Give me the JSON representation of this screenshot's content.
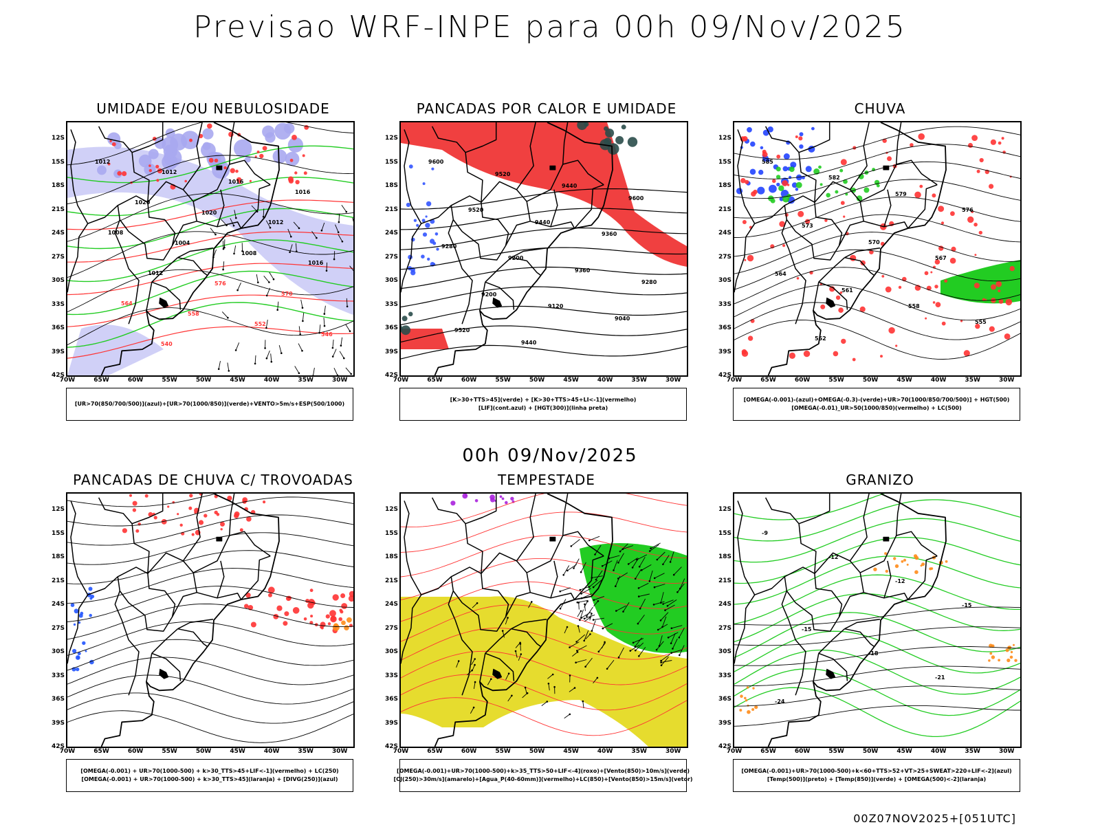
{
  "main_title": "Previsao WRF-INPE  para 00h 09/Nov/2025",
  "mid_title": "00h 09/Nov/2025",
  "footer": "00Z07NOV2025+[051UTC]",
  "lat_labels": [
    "12S",
    "15S",
    "18S",
    "21S",
    "24S",
    "27S",
    "30S",
    "33S",
    "36S",
    "39S",
    "42S"
  ],
  "lon_labels": [
    "70W",
    "65W",
    "60W",
    "55W",
    "50W",
    "45W",
    "40W",
    "35W",
    "30W"
  ],
  "lat_values": [
    -12,
    -15,
    -18,
    -21,
    -24,
    -27,
    -30,
    -33,
    -36,
    -39,
    -42
  ],
  "lon_values": [
    -70,
    -65,
    -60,
    -55,
    -50,
    -45,
    -40,
    -35,
    -30
  ],
  "extent": {
    "lon_min": -70,
    "lon_max": -28,
    "lat_min": -42,
    "lat_max": -10
  },
  "panels": [
    {
      "title": "UMIDADE E/OU NEBULOSIDADE",
      "legend": [
        "[UR>70(850/700/500)](azul)+[UR>70(1000/850)](verde)+VENTO>5m/s+ESP(500/1000)"
      ],
      "contour_labels": [
        "1012",
        "1012",
        "1016",
        "1016",
        "1020",
        "1020",
        "1012",
        "1008",
        "1004",
        "1008",
        "1016",
        "1012",
        "576",
        "570",
        "564",
        "558",
        "552",
        "546",
        "540"
      ],
      "colors": {
        "fill": "#a9a9f0",
        "green": "#22cc22",
        "red": "#ff3333"
      }
    },
    {
      "title": "PANCADAS POR CALOR E UMIDADE",
      "legend": [
        "[K>30+TTS>45](verde) + [K>30+TTS>45+LI<-1](vermelho)",
        "[LIF](cont.azul) + [HGT(300)](linha preta)"
      ],
      "contour_labels": [
        "9600",
        "9520",
        "9440",
        "9600",
        "9520",
        "9440",
        "9360",
        "9280",
        "9200",
        "9360",
        "9280",
        "9200",
        "9120",
        "9040",
        "9520",
        "9440"
      ],
      "colors": {
        "fill": "#f04040",
        "green": "#2a4d4a",
        "blue": "#3355ff"
      }
    },
    {
      "title": "CHUVA",
      "legend": [
        "[OMEGA(-0.001)-(azul)+OMEGA(-0.3)-(verde)+UR>70(1000/850/700/500)] + HGT(500)",
        "[OMEGA(-0.01)_UR>50(1000/850)(vermelho) + LC(500)"
      ],
      "contour_labels": [
        "585",
        "582",
        "579",
        "576",
        "573",
        "570",
        "567",
        "564",
        "561",
        "558",
        "555",
        "552"
      ],
      "colors": {
        "red": "#ff3333",
        "green": "#22cc22",
        "blue": "#2244ff"
      }
    },
    {
      "title": "PANCADAS DE CHUVA C/ TROVOADAS",
      "legend": [
        "[OMEGA(-0.001) + UR>70(1000-500) + k>30_TTS>45+LIF<-1](vermelho) + LC(250)",
        "[OMEGA(-0.001) + UR>70(1000-500) + k>30_TTS>45](laranja) + [DIVG(250)](azul)"
      ],
      "contour_labels": [],
      "colors": {
        "red": "#ff3333",
        "orange": "#ff8c1a",
        "blue": "#2255ff"
      }
    },
    {
      "title": "TEMPESTADE",
      "legend": [
        "[OMEGA(-0.001)+UR>70(1000-500)+k>35_TTS>50+LIF<-4](roxo)+[Vento(850)>10m/s](verde)",
        "[CJ(250)>30m/s](amarelo)+[Agua_P(40-60mm)](vermelho)+LC(850)+[Vento(850)>15m/s](vetor)"
      ],
      "contour_labels": [],
      "colors": {
        "yellow": "#e6dc2e",
        "green": "#22cc22",
        "red": "#ff3333",
        "purple": "#aa22dd"
      }
    },
    {
      "title": "GRANIZO",
      "legend": [
        "[OMEGA(-0.001)+UR>70(1000-500)+k<60+TTS>52+VT>25+SWEAT>220+LIF<-2](azul)",
        "[Temp(500)](preto) + [Temp(850)](verde) + [OMEGA(500)<-2](laranja)"
      ],
      "contour_labels": [
        "-9",
        "-12",
        "-12",
        "-15",
        "-15",
        "-18",
        "-21",
        "-24"
      ],
      "colors": {
        "green": "#22cc22",
        "orange": "#ff8c1a"
      }
    }
  ]
}
